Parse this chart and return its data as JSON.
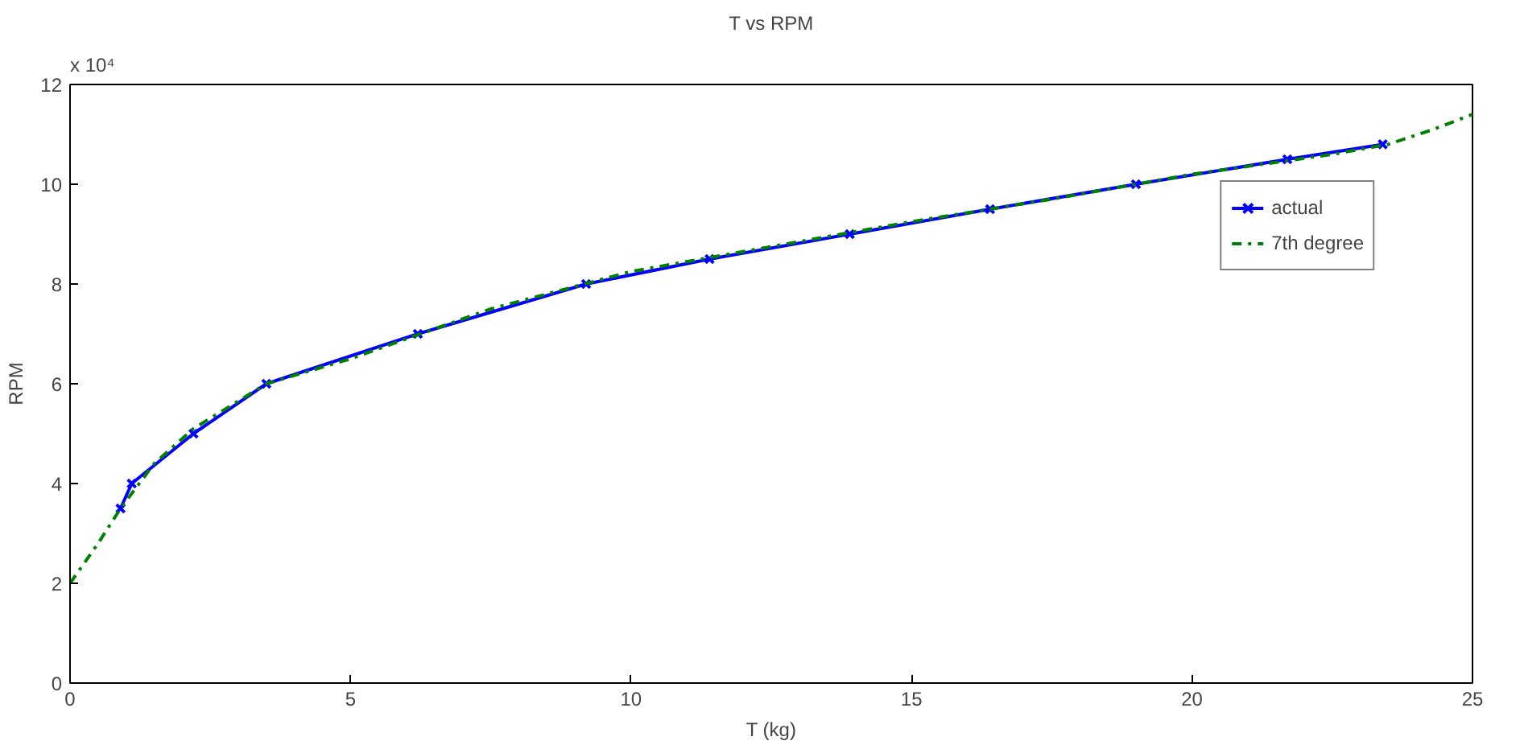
{
  "chart_data": {
    "type": "line",
    "title": "T vs RPM",
    "xlabel": "T (kg)",
    "ylabel": "RPM",
    "annotations": [
      "x 10⁴"
    ],
    "xlim": [
      0,
      25
    ],
    "ylim": [
      0,
      12
    ],
    "xticks": [
      0,
      5,
      10,
      15,
      20,
      25
    ],
    "yticks": [
      0,
      2,
      4,
      6,
      8,
      10,
      12
    ],
    "grid": false,
    "legend": "top right",
    "series": [
      {
        "name": "actual",
        "color": "#0000ff",
        "marker": "cross",
        "line_style": "solid",
        "x": [
          0.9,
          1.1,
          2.2,
          3.5,
          6.2,
          9.2,
          11.4,
          13.9,
          16.4,
          19,
          21.7,
          23.4
        ],
        "values": [
          3.5,
          4,
          5,
          6,
          7,
          8,
          8.5,
          9,
          9.5,
          10,
          10.5,
          10.8
        ]
      },
      {
        "name": "7th degree",
        "color": "#008000",
        "marker": "none",
        "line_style": "dashdot",
        "x": [
          0,
          0.5,
          0.9,
          1.5,
          2.2,
          3.5,
          5,
          7.5,
          10,
          12.5,
          15,
          17.5,
          20,
          22.5,
          23.5,
          24.3,
          25
        ],
        "values": [
          2.0,
          2.8,
          3.5,
          4.4,
          5.1,
          6.0,
          6.5,
          7.5,
          8.25,
          8.75,
          9.25,
          9.7,
          10.2,
          10.6,
          10.8,
          11.1,
          11.4
        ]
      }
    ]
  }
}
